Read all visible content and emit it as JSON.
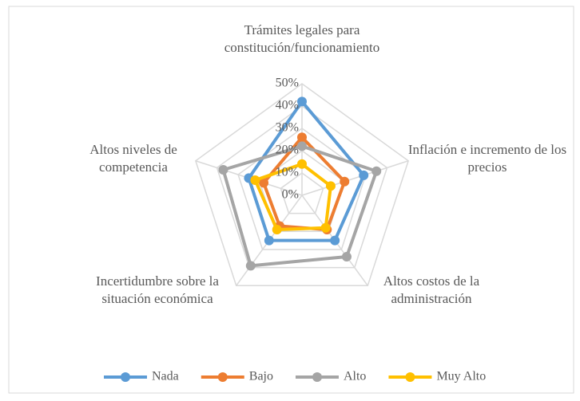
{
  "chart_data": {
    "type": "radar",
    "categories": [
      "Trámites legales para constitución/funcionamiento",
      "Inflación e incremento de los precios",
      "Altos costos de la administración",
      "Incertidumbre sobre la situación económica",
      "Altos niveles de competencia"
    ],
    "series": [
      {
        "name": "Nada",
        "color": "#5b9bd5",
        "values": [
          42,
          29,
          25,
          25,
          25
        ]
      },
      {
        "name": "Bajo",
        "color": "#ed7d31",
        "values": [
          26,
          20,
          19,
          17,
          18
        ]
      },
      {
        "name": "Alto",
        "color": "#a5a5a5",
        "values": [
          22,
          35,
          34,
          39,
          37
        ]
      },
      {
        "name": "Muy Alto",
        "color": "#ffc000",
        "values": [
          14,
          13.5,
          18,
          19,
          22
        ]
      }
    ],
    "ylim": [
      0,
      50
    ],
    "yticks": [
      {
        "value": 0,
        "label": "0%"
      },
      {
        "value": 10,
        "label": "10%"
      },
      {
        "value": 20,
        "label": "20%"
      },
      {
        "value": 30,
        "label": "30%"
      },
      {
        "value": 40,
        "label": "40%"
      },
      {
        "value": 50,
        "label": "50%"
      }
    ],
    "grid": true,
    "legend": "bottom"
  }
}
